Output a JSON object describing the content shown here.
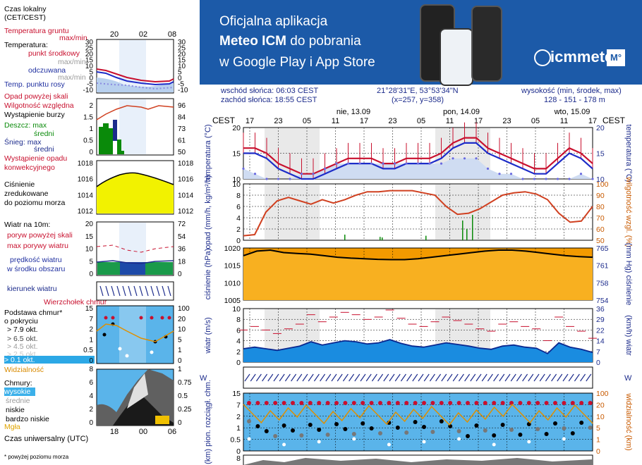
{
  "legend": {
    "time_local": "Czas lokalny",
    "time_local2": "(CET/CEST)",
    "soil_temp": "Temperatura gruntu",
    "soil_temp2": "max/min",
    "temperature": "Temperatura:",
    "midpoint": "punkt środkowy",
    "maxmin": "max/min",
    "perceived": "odczuwana",
    "perceived_maxmin": "max/min",
    "dewpoint": "Temp. punktu rosy",
    "precip_above": "Opad powyżej skali",
    "humidity": "Wilgotność względna",
    "storm": "Wystąpienie burzy",
    "rain_max": "Deszcz: max",
    "rain_mean": "średni",
    "snow_max": "Śnieg:  max",
    "snow_mean": "średni",
    "precip_occur": "Wystąpienie opadu",
    "precip_occur2": "konwekcyjnego",
    "pressure1": "Ciśnienie",
    "pressure2": "zredukowane",
    "pressure3": "do poziomu morza",
    "wind_at": "Wiatr na 10m:",
    "gust_above": "poryw powyżej skali",
    "gust_max": "max porywy wiatru",
    "wind_speed": "prędkość wiatru",
    "wind_area": "w środku obszaru",
    "wind_dir": "kierunek wiatru",
    "cloud_top": "Wierzchołek chmur",
    "cloud_base": "Podstawa chmur*",
    "cloud_base2": "o pokryciu",
    "okt1": "> 7.9 okt.",
    "okt2": "> 6.5 okt.",
    "okt3": "> 4.5 okt.",
    "okt4": "> 2.5 okt.",
    "okt5": "> 0.1 okt.",
    "visibility": "Widzialność",
    "clouds": "Chmury:",
    "high": "wysokie",
    "mid": "średnie",
    "low": "niskie",
    "vlow": "bardzo niskie",
    "fog": "Mgła",
    "utc": "Czas uniwersalny (UTC)",
    "footnote": "* powyżej poziomu morza",
    "hours_top": [
      "20",
      "02",
      "08"
    ],
    "hours_bottom": [
      "18",
      "00",
      "06"
    ]
  },
  "banner": {
    "line1": "Oficjalna aplikacja",
    "line2_bold": "Meteo ICM",
    "line2_rest": " do pobrania",
    "line3": "w Google Play i App Store",
    "logo": "icmmeteo",
    "logo_badge": "M°"
  },
  "info": {
    "sunrise": "wschód słońca: 06:03 CEST",
    "sunset": "zachód słońca: 18:55 CEST",
    "coords": "21°28'31\"E, 53°53'34\"N",
    "grid": "(x=257,  y=358)",
    "elev_label": "wysokość (min, środek, max)",
    "elev": "128 - 151 - 178 m"
  },
  "chart_data": {
    "type": "line",
    "timezone": "CEST",
    "days": [
      "nie, 13.09",
      "pon, 14.09",
      "wto, 15.09"
    ],
    "hours": [
      "17",
      "23",
      "05",
      "11",
      "17",
      "23",
      "05",
      "11",
      "17",
      "23",
      "05",
      "11",
      "17"
    ],
    "temperature": {
      "ylabel": "temperatura (°C)",
      "ylim": [
        10,
        20
      ],
      "ticks": [
        10,
        15,
        20
      ],
      "midpoint": [
        16,
        16,
        15,
        13,
        12,
        11,
        11,
        12,
        13,
        14,
        14,
        14,
        13,
        13,
        14,
        14,
        14,
        15,
        17,
        18,
        18,
        16,
        15,
        14,
        13,
        12,
        12,
        14,
        16,
        15,
        13
      ],
      "perceived": [
        15,
        15,
        14,
        12,
        11,
        10,
        10,
        11,
        12,
        13,
        13,
        13,
        12,
        12,
        13,
        13,
        13,
        14,
        16,
        17,
        17,
        15,
        14,
        13,
        12,
        11,
        11,
        13,
        15,
        14,
        12
      ],
      "dewpoint": [
        12,
        11,
        10,
        10,
        10,
        11,
        11,
        12,
        13,
        13,
        13,
        13,
        13,
        13,
        13,
        13,
        13,
        13,
        14,
        14,
        14,
        12,
        11,
        11,
        10,
        10,
        10,
        10,
        10,
        11,
        10
      ]
    },
    "precipitation": {
      "ylabel": "opad (mm/h, kg/m²/h)",
      "ylim": [
        0,
        10
      ],
      "ticks": [
        0,
        2,
        4,
        6,
        8,
        10
      ],
      "humidity_label": "wilgotność wzgl. (%)",
      "humidity_ticks": [
        50,
        60,
        70,
        80,
        90,
        100
      ],
      "humidity": [
        54,
        55,
        75,
        85,
        88,
        85,
        82,
        86,
        83,
        86,
        90,
        93,
        93,
        94,
        94,
        94,
        92,
        90,
        80,
        73,
        74,
        78,
        84,
        90,
        92,
        93,
        91,
        86,
        74,
        66,
        67,
        80
      ]
    },
    "pressure": {
      "ylabel": "ciśnienie (hPa)",
      "ylim": [
        1005,
        1022
      ],
      "ticks": [
        1005,
        1010,
        1015,
        1020
      ],
      "mmhg_label": "(mm Hg) ciśnienie",
      "mmhg_ticks": [
        754,
        758,
        761,
        765
      ],
      "values": [
        1019.5,
        1021,
        1021.3,
        1020.5,
        1020.2,
        1020,
        1019.5,
        1019,
        1018.7,
        1018.5,
        1018.3,
        1018.2,
        1018.2,
        1018.5,
        1019,
        1019.5,
        1020,
        1020.5,
        1021,
        1021.3,
        1021.3,
        1021,
        1020.5,
        1020,
        1019.5,
        1019.2,
        1019
      ]
    },
    "wind": {
      "ylabel": "wiatr (m/s)",
      "ylim": [
        0,
        10
      ],
      "ticks": [
        0,
        2,
        4,
        6,
        8,
        10
      ],
      "kmh_label": "(km/h) wiatr",
      "kmh_ticks": [
        0,
        7,
        14,
        22,
        29,
        36
      ],
      "speed": [
        2.5,
        2.8,
        2.5,
        2.2,
        2.6,
        3,
        3.8,
        3.2,
        3.6,
        4,
        3.8,
        3.4,
        3.6,
        4.2,
        3.5,
        3,
        2.8,
        3.2,
        3.6,
        3.3,
        3,
        2.6,
        2.4,
        3,
        3.2,
        2.8,
        2.6,
        1.6,
        3.6,
        2.8,
        2.4,
        1.8
      ]
    },
    "clouds": {
      "ylabel": "(km) pion. rozciągł. chm.",
      "left_ticks": [
        0,
        0.5,
        1,
        2.0,
        7.0,
        15.0
      ],
      "vis_label": "widzialność (km)",
      "right_ticks": [
        0,
        1,
        5,
        10,
        20,
        100
      ]
    },
    "bottom_panel": {
      "ticks": [
        8
      ]
    },
    "sample_panels": {
      "temp_ticks": [
        -10,
        -5,
        0,
        5,
        10,
        15,
        20,
        25,
        30
      ],
      "hum_ticks": [
        50,
        61,
        73,
        84,
        96
      ],
      "precip_ticks": [
        0,
        0.5,
        1.0,
        1.5,
        2.0
      ],
      "pres_ticks": [
        1012,
        1014,
        1016,
        1018
      ],
      "wind_ticks": [
        0,
        5,
        10,
        15,
        20
      ],
      "wind_kmh_ticks": [
        0,
        18,
        36,
        54,
        72
      ],
      "cloud_ticks": [
        0,
        0.5,
        1,
        2.0,
        7.0,
        15.0
      ],
      "cloud_right_ticks": [
        0,
        1,
        5,
        10,
        20,
        100
      ],
      "clouds_ticks": [
        0,
        2,
        4,
        6,
        8
      ],
      "clouds_right": [
        0,
        0.25,
        0.5,
        0.75,
        1
      ]
    }
  }
}
